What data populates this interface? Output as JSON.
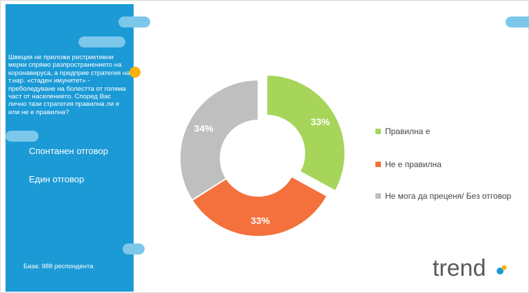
{
  "sidebar": {
    "question": "Швеция не приложи рестриктивни мерки спрямо разпространението на коронавируса, а предприе стратегия на т.нар. «стаден имунитет» - преболедуване на болестта от голяма част от населението. Според Вас лично тази стратегия правилна ли е или не е правилна?",
    "option_spontaneous": "Спонтанен отговор",
    "option_single": "Един отговор",
    "base": "База: 988 респондента"
  },
  "logo": {
    "text": "trend"
  },
  "chart_data": {
    "type": "donut",
    "categories": [
      "Правилна е",
      "Не е правилна",
      "Не мога да преценя/ Без отговор"
    ],
    "values": [
      33,
      33,
      34
    ],
    "labels": [
      "33%",
      "33%",
      "34%"
    ],
    "colors": [
      "#a6d55a",
      "#f4703c",
      "#bfbfbf"
    ],
    "exploded_index": 0,
    "legend_position": "right"
  }
}
